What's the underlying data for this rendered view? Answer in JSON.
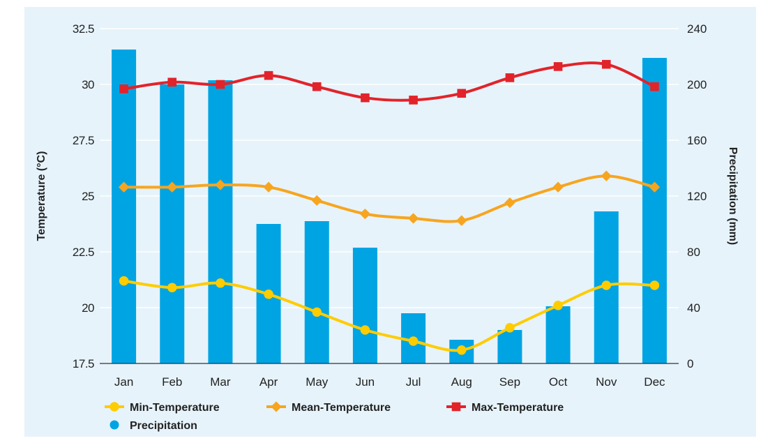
{
  "chart_data": {
    "type": "bar+line",
    "categories": [
      "Jan",
      "Feb",
      "Mar",
      "Apr",
      "May",
      "Jun",
      "Jul",
      "Aug",
      "Sep",
      "Oct",
      "Nov",
      "Dec"
    ],
    "y_left": {
      "label": "Temperature (°C)",
      "range": [
        17.5,
        32.5
      ],
      "ticks": [
        "17.5",
        "20",
        "22.5",
        "25",
        "27.5",
        "30",
        "32.5"
      ]
    },
    "y_right": {
      "label": "Precipitation (mm)",
      "range": [
        0,
        240
      ],
      "ticks": [
        "0",
        "40",
        "80",
        "120",
        "160",
        "200",
        "240"
      ]
    },
    "bars": {
      "name": "Precipitation",
      "axis": "right",
      "values": [
        225,
        200,
        203,
        100,
        102,
        83,
        36,
        17,
        24,
        41,
        109,
        219
      ],
      "color": "#00a4e3"
    },
    "series": [
      {
        "name": "Min-Temperature",
        "axis": "left",
        "marker": "circle",
        "values": [
          21.2,
          20.9,
          21.1,
          20.6,
          19.8,
          19.0,
          18.5,
          18.1,
          19.1,
          20.1,
          21.0,
          21.0
        ],
        "color": "#ffcc00"
      },
      {
        "name": "Mean-Temperature",
        "axis": "left",
        "marker": "diamond",
        "values": [
          25.4,
          25.4,
          25.5,
          25.4,
          24.8,
          24.2,
          24.0,
          23.9,
          24.7,
          25.4,
          25.9,
          25.4
        ],
        "color": "#f7a51f"
      },
      {
        "name": "Max-Temperature",
        "axis": "left",
        "marker": "square",
        "values": [
          29.8,
          30.1,
          30.0,
          30.4,
          29.9,
          29.4,
          29.3,
          29.6,
          30.3,
          30.8,
          30.9,
          29.9
        ],
        "color": "#e2232a"
      }
    ],
    "legend": {
      "position": "bottom-left",
      "items": [
        "Min-Temperature",
        "Mean-Temperature",
        "Max-Temperature",
        "Precipitation"
      ]
    },
    "grid": "horizontal",
    "background": "#e6f3fb",
    "grid_color": "#ffffff"
  }
}
